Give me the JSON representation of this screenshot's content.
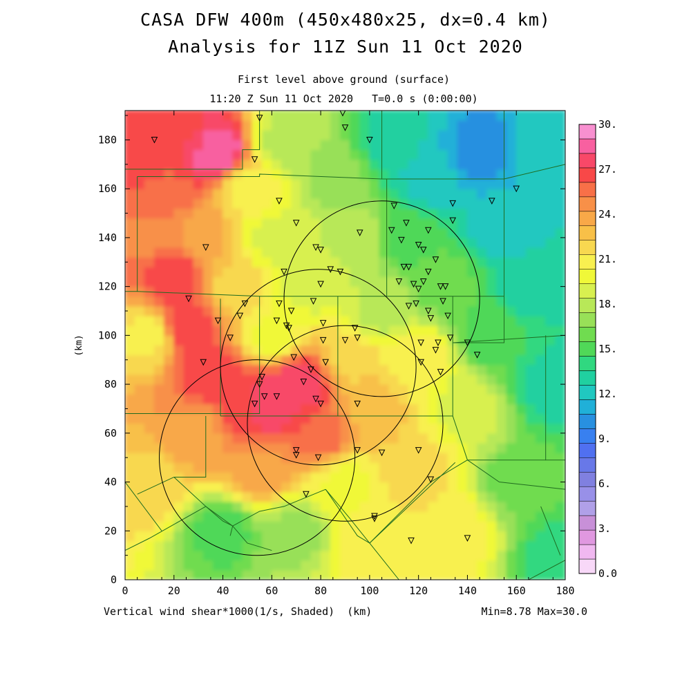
{
  "header": {
    "title_line1": "CASA DFW 400m (450x480x25, dx=0.4 km)",
    "title_line2": "Analysis for 11Z Sun 11 Oct 2020",
    "subtitle_line1": "First level above ground (surface)",
    "subtitle_line2": "11:20 Z Sun 11 Oct 2020   T=0.0 s (0:00:00)"
  },
  "footer": {
    "variable_label": "Vertical wind shear*1000(1/s, Shaded)  (km)",
    "minmax_label": "Min=8.78 Max=30.0"
  },
  "chart_data": {
    "type": "heatmap",
    "title": "CASA DFW 400m (450x480x25, dx=0.4 km)",
    "subtitle": "Analysis for 11Z Sun 11 Oct 2020",
    "xlabel": "",
    "ylabel": "(km)",
    "xlim": [
      0,
      180
    ],
    "ylim": [
      0,
      192
    ],
    "x_ticks": [
      "0",
      "20",
      "40",
      "60",
      "80",
      "100",
      "120",
      "140",
      "160",
      "180"
    ],
    "y_ticks": [
      "0",
      "20",
      "40",
      "60",
      "80",
      "100",
      "120",
      "140",
      "160",
      "180"
    ],
    "colorbar": {
      "min": 0.0,
      "max": 30.0,
      "labels": [
        "0.0",
        "3.",
        "6.",
        "9.",
        "12.",
        "15.",
        "18.",
        "21.",
        "24.",
        "27.",
        "30."
      ],
      "colors": [
        "#f8d8f8",
        "#f0b8f0",
        "#e098e0",
        "#c890d8",
        "#b0a0e8",
        "#9890e8",
        "#8080e0",
        "#6878e8",
        "#5070f0",
        "#3880f0",
        "#2890e0",
        "#20b0d8",
        "#20c8c0",
        "#20d0a0",
        "#30d880",
        "#50d858",
        "#70dc50",
        "#98e058",
        "#b8e858",
        "#d8f050",
        "#f0f838",
        "#f8f050",
        "#f8d850",
        "#f8c048",
        "#f8a848",
        "#f89048",
        "#f87048",
        "#f84848",
        "#f84868",
        "#f860a0",
        "#f890d0"
      ]
    },
    "series": [
      {
        "x": 10,
        "y": 40,
        "v": 22
      },
      {
        "x": 10,
        "y": 100,
        "v": 21
      },
      {
        "x": 10,
        "y": 140,
        "v": 25
      },
      {
        "x": 10,
        "y": 175,
        "v": 27
      },
      {
        "x": 15,
        "y": 160,
        "v": 26
      },
      {
        "x": 20,
        "y": 125,
        "v": 27
      },
      {
        "x": 25,
        "y": 105,
        "v": 27
      },
      {
        "x": 25,
        "y": 185,
        "v": 27
      },
      {
        "x": 30,
        "y": 60,
        "v": 24
      },
      {
        "x": 30,
        "y": 140,
        "v": 24
      },
      {
        "x": 35,
        "y": 85,
        "v": 27
      },
      {
        "x": 38,
        "y": 175,
        "v": 29
      },
      {
        "x": 40,
        "y": 20,
        "v": 15
      },
      {
        "x": 45,
        "y": 120,
        "v": 22
      },
      {
        "x": 50,
        "y": 70,
        "v": 27
      },
      {
        "x": 50,
        "y": 160,
        "v": 21
      },
      {
        "x": 55,
        "y": 45,
        "v": 24
      },
      {
        "x": 60,
        "y": 72,
        "v": 28
      },
      {
        "x": 60,
        "y": 100,
        "v": 20
      },
      {
        "x": 60,
        "y": 140,
        "v": 19
      },
      {
        "x": 65,
        "y": 180,
        "v": 18
      },
      {
        "x": 70,
        "y": 20,
        "v": 17
      },
      {
        "x": 72,
        "y": 80,
        "v": 28
      },
      {
        "x": 75,
        "y": 120,
        "v": 19
      },
      {
        "x": 80,
        "y": 60,
        "v": 26
      },
      {
        "x": 85,
        "y": 165,
        "v": 17
      },
      {
        "x": 90,
        "y": 40,
        "v": 20
      },
      {
        "x": 92,
        "y": 90,
        "v": 22
      },
      {
        "x": 95,
        "y": 140,
        "v": 18
      },
      {
        "x": 100,
        "y": 15,
        "v": 21
      },
      {
        "x": 100,
        "y": 70,
        "v": 23
      },
      {
        "x": 105,
        "y": 110,
        "v": 18
      },
      {
        "x": 110,
        "y": 180,
        "v": 13
      },
      {
        "x": 115,
        "y": 140,
        "v": 15
      },
      {
        "x": 120,
        "y": 45,
        "v": 22
      },
      {
        "x": 120,
        "y": 90,
        "v": 21
      },
      {
        "x": 125,
        "y": 165,
        "v": 12
      },
      {
        "x": 130,
        "y": 120,
        "v": 16
      },
      {
        "x": 135,
        "y": 20,
        "v": 21
      },
      {
        "x": 140,
        "y": 70,
        "v": 19
      },
      {
        "x": 145,
        "y": 175,
        "v": 10
      },
      {
        "x": 150,
        "y": 100,
        "v": 15
      },
      {
        "x": 155,
        "y": 145,
        "v": 12
      },
      {
        "x": 160,
        "y": 40,
        "v": 16
      },
      {
        "x": 165,
        "y": 120,
        "v": 13
      },
      {
        "x": 170,
        "y": 175,
        "v": 12
      },
      {
        "x": 175,
        "y": 80,
        "v": 13
      },
      {
        "x": 178,
        "y": 10,
        "v": 14
      }
    ],
    "radar_circles": [
      {
        "cx": 105,
        "cy": 115,
        "r": 40
      },
      {
        "cx": 79,
        "cy": 87,
        "r": 40
      },
      {
        "cx": 90,
        "cy": 64,
        "r": 40
      },
      {
        "cx": 54,
        "cy": 50,
        "r": 40
      }
    ],
    "stations": [
      [
        12,
        180
      ],
      [
        55,
        189
      ],
      [
        89,
        191
      ],
      [
        90,
        185
      ],
      [
        100,
        180
      ],
      [
        53,
        172
      ],
      [
        63,
        155
      ],
      [
        150,
        155
      ],
      [
        160,
        160
      ],
      [
        110,
        153
      ],
      [
        134,
        154
      ],
      [
        115,
        146
      ],
      [
        70,
        146
      ],
      [
        96,
        142
      ],
      [
        109,
        143
      ],
      [
        124,
        143
      ],
      [
        134,
        147
      ],
      [
        113,
        139
      ],
      [
        120,
        137
      ],
      [
        78,
        136
      ],
      [
        80,
        135
      ],
      [
        33,
        136
      ],
      [
        122,
        135
      ],
      [
        114,
        128
      ],
      [
        116,
        128
      ],
      [
        127,
        131
      ],
      [
        65,
        126
      ],
      [
        84,
        127
      ],
      [
        88,
        126
      ],
      [
        124,
        126
      ],
      [
        80,
        121
      ],
      [
        112,
        122
      ],
      [
        122,
        122
      ],
      [
        118,
        121
      ],
      [
        120,
        119
      ],
      [
        131,
        120
      ],
      [
        129,
        120
      ],
      [
        26,
        115
      ],
      [
        49,
        113
      ],
      [
        63,
        113
      ],
      [
        77,
        114
      ],
      [
        130,
        114
      ],
      [
        116,
        112
      ],
      [
        119,
        113
      ],
      [
        124,
        110
      ],
      [
        68,
        110
      ],
      [
        47,
        108
      ],
      [
        132,
        108
      ],
      [
        62,
        106
      ],
      [
        125,
        107
      ],
      [
        38,
        106
      ],
      [
        66,
        104
      ],
      [
        67,
        103
      ],
      [
        81,
        105
      ],
      [
        94,
        103
      ],
      [
        43,
        99
      ],
      [
        95,
        99
      ],
      [
        90,
        98
      ],
      [
        81,
        98
      ],
      [
        121,
        97
      ],
      [
        128,
        97
      ],
      [
        133,
        99
      ],
      [
        140,
        97
      ],
      [
        127,
        94
      ],
      [
        144,
        92
      ],
      [
        69,
        91
      ],
      [
        32,
        89
      ],
      [
        82,
        89
      ],
      [
        121,
        89
      ],
      [
        76,
        86
      ],
      [
        129,
        85
      ],
      [
        56,
        83
      ],
      [
        55,
        80
      ],
      [
        73,
        81
      ],
      [
        57,
        75
      ],
      [
        62,
        75
      ],
      [
        53,
        72
      ],
      [
        78,
        74
      ],
      [
        80,
        72
      ],
      [
        95,
        72
      ],
      [
        70,
        53
      ],
      [
        70,
        51
      ],
      [
        79,
        50
      ],
      [
        95,
        53
      ],
      [
        105,
        52
      ],
      [
        120,
        53
      ],
      [
        125,
        41
      ],
      [
        74,
        35
      ],
      [
        102,
        26
      ],
      [
        102,
        25
      ],
      [
        117,
        16
      ],
      [
        140,
        17
      ]
    ],
    "county_lines": [
      [
        [
          0,
          168
        ],
        [
          48,
          168
        ],
        [
          48,
          176
        ],
        [
          55,
          176
        ],
        [
          55,
          192
        ]
      ],
      [
        [
          5,
          165
        ],
        [
          5,
          118
        ],
        [
          0,
          118
        ]
      ],
      [
        [
          5,
          165
        ],
        [
          48,
          165
        ],
        [
          55,
          165
        ],
        [
          55,
          166
        ],
        [
          105,
          164
        ],
        [
          155,
          164
        ],
        [
          155,
          192
        ]
      ],
      [
        [
          105,
          164
        ],
        [
          105,
          192
        ]
      ],
      [
        [
          155,
          164
        ],
        [
          180,
          170
        ]
      ],
      [
        [
          155,
          164
        ],
        [
          155,
          116
        ],
        [
          107,
          116
        ]
      ],
      [
        [
          5,
          118
        ],
        [
          55,
          116
        ],
        [
          55,
          68
        ],
        [
          0,
          68
        ]
      ],
      [
        [
          55,
          116
        ],
        [
          107,
          116
        ],
        [
          107,
          164
        ]
      ],
      [
        [
          39,
          115
        ],
        [
          39,
          67
        ]
      ],
      [
        [
          87,
          116
        ],
        [
          87,
          67
        ]
      ],
      [
        [
          39,
          67
        ],
        [
          134,
          67
        ],
        [
          134,
          116
        ]
      ],
      [
        [
          134,
          97
        ],
        [
          155,
          97
        ],
        [
          155,
          116
        ]
      ],
      [
        [
          134,
          97
        ],
        [
          180,
          100
        ]
      ],
      [
        [
          172,
          100
        ],
        [
          172,
          49
        ],
        [
          180,
          49
        ]
      ],
      [
        [
          134,
          67
        ],
        [
          140,
          49
        ],
        [
          172,
          49
        ]
      ],
      [
        [
          140,
          49
        ],
        [
          153,
          40
        ],
        [
          180,
          37
        ]
      ],
      [
        [
          33,
          67
        ],
        [
          33,
          42
        ],
        [
          20,
          42
        ],
        [
          5,
          35
        ]
      ],
      [
        [
          20,
          42
        ],
        [
          33,
          30
        ],
        [
          44,
          22
        ],
        [
          43,
          18
        ]
      ],
      [
        [
          33,
          30
        ],
        [
          10,
          17
        ],
        [
          0,
          12
        ]
      ],
      [
        [
          33,
          30
        ],
        [
          40,
          24
        ],
        [
          44,
          22
        ],
        [
          50,
          15
        ],
        [
          60,
          12
        ]
      ],
      [
        [
          0,
          40
        ],
        [
          15,
          20
        ]
      ],
      [
        [
          44,
          22
        ],
        [
          55,
          28
        ],
        [
          65,
          30
        ],
        [
          82,
          37
        ]
      ],
      [
        [
          82,
          37
        ],
        [
          92,
          25
        ],
        [
          100,
          15
        ],
        [
          112,
          0
        ]
      ],
      [
        [
          82,
          37
        ],
        [
          95,
          18
        ],
        [
          100,
          15
        ]
      ],
      [
        [
          100,
          15
        ],
        [
          135,
          48
        ]
      ],
      [
        [
          140,
          49
        ],
        [
          125,
          40
        ],
        [
          100,
          15
        ]
      ],
      [
        [
          165,
          0
        ],
        [
          180,
          8
        ]
      ],
      [
        [
          170,
          30
        ],
        [
          178,
          10
        ]
      ]
    ]
  }
}
